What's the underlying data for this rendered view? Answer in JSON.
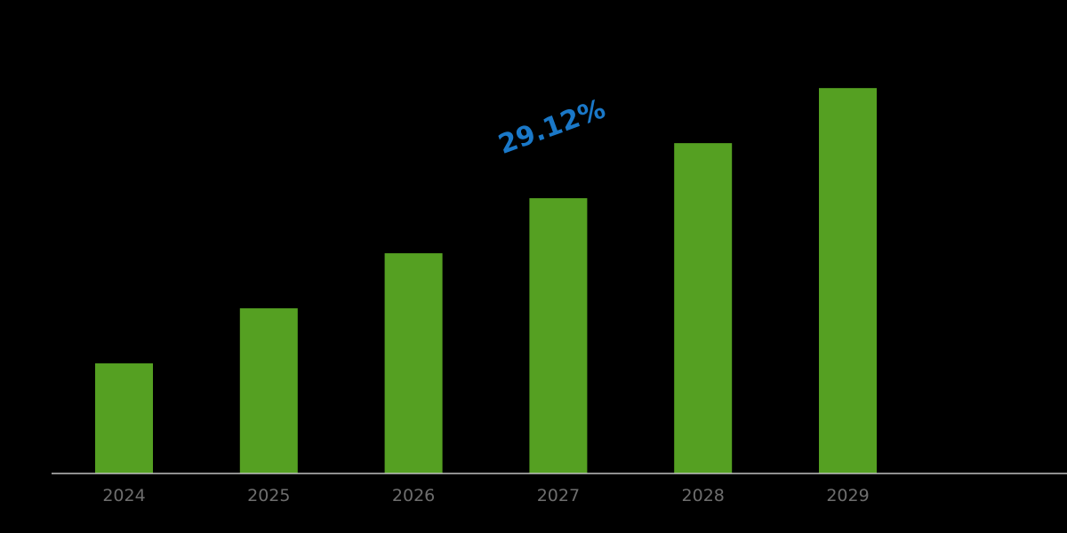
{
  "chart_data": {
    "type": "bar",
    "title": "",
    "xlabel": "",
    "ylabel": "",
    "categories": [
      "2024",
      "2025",
      "2026",
      "2027",
      "2028",
      "2029"
    ],
    "values": [
      2,
      3,
      4,
      5,
      6,
      7
    ],
    "ylim": [
      0,
      8.6
    ],
    "grid": false,
    "legend": "none",
    "annotation": "29.12%",
    "colors": {
      "bar": "#55a022",
      "annotation": "#1a78c8",
      "axis": "#bfbfbf",
      "tick_label": "#6e6e6e",
      "background": "#000000"
    }
  }
}
